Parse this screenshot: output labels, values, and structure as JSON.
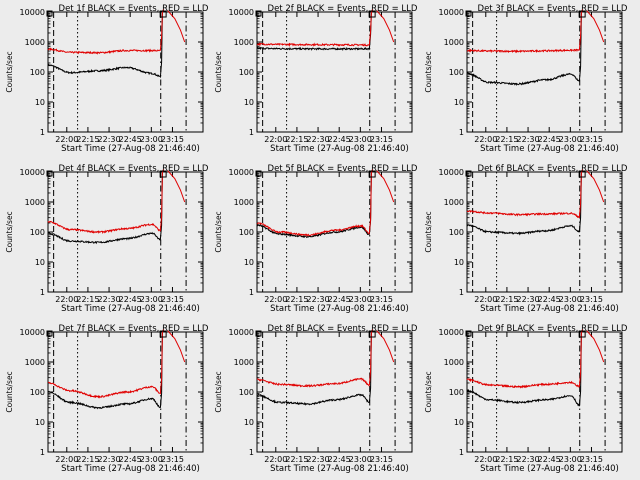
{
  "figure": {
    "background": "#ececec",
    "colors": {
      "events": "#000000",
      "lld": "#e00000",
      "axes": "#000000"
    },
    "x_ticks": [
      "22:00",
      "22:15",
      "22:30",
      "22:45",
      "23:00",
      "23:15"
    ],
    "y_ticks": [
      "1",
      "10",
      "100",
      "1000",
      "10000"
    ],
    "ylabel": "Counts/sec",
    "xlabel": "Start Time (27-Aug-08 21:46:40)"
  },
  "chart_data": [
    {
      "type": "line",
      "title": "Det 1f BLACK = Events, RED = LLD",
      "ylog": true,
      "ylim": [
        1,
        10000
      ],
      "xrange_min": [
        0,
        6600
      ],
      "series": [
        {
          "name": "Events",
          "color": "#000000",
          "base": [
            170,
            95,
            110,
            140,
            90,
            70
          ]
        },
        {
          "name": "LLD",
          "color": "#e00000",
          "base": [
            580,
            450,
            440,
            520,
            520,
            510
          ]
        }
      ]
    },
    {
      "type": "line",
      "title": "Det 2f BLACK = Events, RED = LLD",
      "ylog": true,
      "ylim": [
        1,
        10000
      ],
      "xrange_min": [
        0,
        6600
      ],
      "series": [
        {
          "name": "Events",
          "color": "#000000",
          "base": [
            620,
            600,
            590,
            590,
            590,
            600
          ]
        },
        {
          "name": "LLD",
          "color": "#e00000",
          "base": [
            850,
            830,
            820,
            810,
            800,
            790
          ]
        }
      ]
    },
    {
      "type": "line",
      "title": "Det 3f BLACK = Events, RED = LLD",
      "ylog": true,
      "ylim": [
        1,
        10000
      ],
      "xrange_min": [
        0,
        6600
      ],
      "series": [
        {
          "name": "Events",
          "color": "#000000",
          "base": [
            90,
            45,
            40,
            55,
            85,
            50
          ]
        },
        {
          "name": "LLD",
          "color": "#e00000",
          "base": [
            520,
            500,
            490,
            510,
            530,
            540
          ]
        }
      ]
    },
    {
      "type": "line",
      "title": "Det 4f BLACK = Events, RED = LLD",
      "ylog": true,
      "ylim": [
        1,
        10000
      ],
      "xrange_min": [
        0,
        6600
      ],
      "series": [
        {
          "name": "Events",
          "color": "#000000",
          "base": [
            90,
            50,
            45,
            60,
            90,
            55
          ]
        },
        {
          "name": "LLD",
          "color": "#e00000",
          "base": [
            220,
            120,
            100,
            130,
            180,
            110
          ]
        }
      ]
    },
    {
      "type": "line",
      "title": "Det 5f BLACK = Events, RED = LLD",
      "ylog": true,
      "ylim": [
        1,
        10000
      ],
      "xrange_min": [
        0,
        6600
      ],
      "series": [
        {
          "name": "Events",
          "color": "#000000",
          "base": [
            170,
            85,
            70,
            100,
            145,
            80
          ]
        },
        {
          "name": "LLD",
          "color": "#e00000",
          "base": [
            200,
            100,
            80,
            115,
            160,
            90
          ]
        }
      ]
    },
    {
      "type": "line",
      "title": "Det 6f BLACK = Events, RED = LLD",
      "ylog": true,
      "ylim": [
        1,
        10000
      ],
      "xrange_min": [
        0,
        6600
      ],
      "series": [
        {
          "name": "Events",
          "color": "#000000",
          "base": [
            170,
            100,
            90,
            110,
            160,
            100
          ]
        },
        {
          "name": "LLD",
          "color": "#e00000",
          "base": [
            500,
            430,
            380,
            400,
            420,
            320
          ]
        }
      ]
    },
    {
      "type": "line",
      "title": "Det 7f BLACK = Events, RED = LLD",
      "ylog": true,
      "ylim": [
        1,
        10000
      ],
      "xrange_min": [
        0,
        6600
      ],
      "series": [
        {
          "name": "Events",
          "color": "#000000",
          "base": [
            100,
            45,
            30,
            40,
            60,
            30
          ]
        },
        {
          "name": "LLD",
          "color": "#e00000",
          "base": [
            200,
            110,
            70,
            100,
            150,
            90
          ]
        }
      ]
    },
    {
      "type": "line",
      "title": "Det 8f BLACK = Events, RED = LLD",
      "ylog": true,
      "ylim": [
        1,
        10000
      ],
      "xrange_min": [
        0,
        6600
      ],
      "series": [
        {
          "name": "Events",
          "color": "#000000",
          "base": [
            80,
            45,
            40,
            55,
            80,
            45
          ]
        },
        {
          "name": "LLD",
          "color": "#e00000",
          "base": [
            260,
            180,
            160,
            190,
            270,
            170
          ]
        }
      ]
    },
    {
      "type": "line",
      "title": "Det 9f BLACK = Events, RED = LLD",
      "ylog": true,
      "ylim": [
        1,
        10000
      ],
      "xrange_min": [
        0,
        6600
      ],
      "series": [
        {
          "name": "Events",
          "color": "#000000",
          "base": [
            110,
            55,
            45,
            55,
            75,
            35
          ]
        },
        {
          "name": "LLD",
          "color": "#e00000",
          "base": [
            260,
            170,
            150,
            180,
            210,
            150
          ]
        }
      ]
    }
  ]
}
